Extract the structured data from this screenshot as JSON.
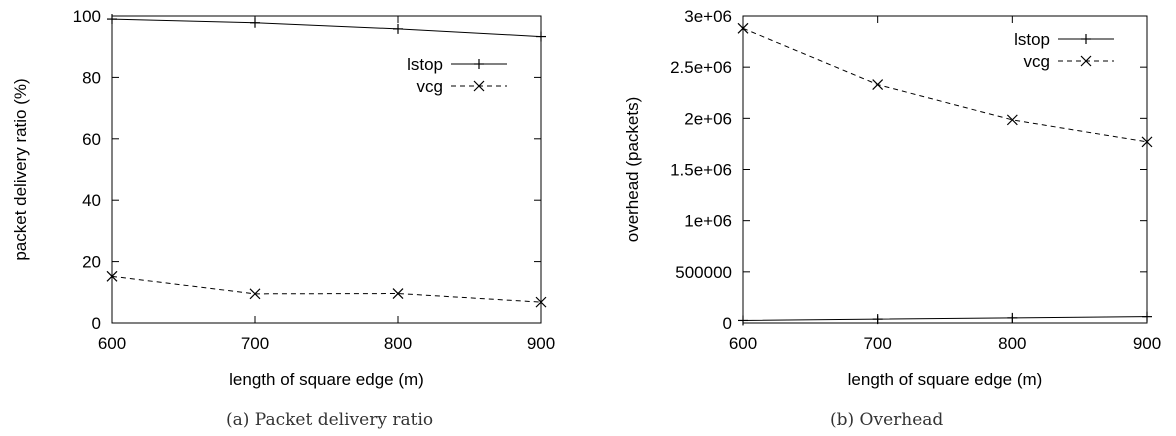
{
  "chart_data": [
    {
      "type": "line",
      "caption": "(a) Packet delivery ratio",
      "xlabel": "length of square edge (m)",
      "ylabel": "packet delivery ratio (%)",
      "x": [
        600,
        700,
        800,
        900
      ],
      "xlim": [
        600,
        900
      ],
      "ylim": [
        0,
        100
      ],
      "xticks": [
        "600",
        "700",
        "800",
        "900"
      ],
      "yticks": [
        "0",
        "20",
        "40",
        "60",
        "80",
        "100"
      ],
      "yticks_values": [
        0,
        20,
        40,
        60,
        80,
        100
      ],
      "legend_position": "top-right",
      "grid": false,
      "series": [
        {
          "name": "lstop",
          "values": [
            99.0,
            97.8,
            95.8,
            93.3
          ],
          "style": "solid",
          "marker": "plus",
          "color": "#000000"
        },
        {
          "name": "vcg",
          "values": [
            15.2,
            9.5,
            9.6,
            6.8
          ],
          "style": "dashed",
          "marker": "x",
          "color": "#000000"
        }
      ]
    },
    {
      "type": "line",
      "caption": "(b) Overhead",
      "xlabel": "length of square edge (m)",
      "ylabel": "overhead (packets)",
      "x": [
        600,
        700,
        800,
        900
      ],
      "xlim": [
        600,
        900
      ],
      "ylim": [
        0,
        3000000
      ],
      "xticks": [
        "600",
        "700",
        "800",
        "900"
      ],
      "yticks": [
        "0",
        "500000",
        "1e+06",
        "1.5e+06",
        "2e+06",
        "2.5e+06",
        "3e+06"
      ],
      "yticks_values": [
        0,
        500000,
        1000000,
        1500000,
        2000000,
        2500000,
        3000000
      ],
      "legend_position": "top-right",
      "grid": false,
      "series": [
        {
          "name": "lstop",
          "values": [
            25000,
            38000,
            50000,
            62000
          ],
          "style": "solid",
          "marker": "plus",
          "color": "#000000"
        },
        {
          "name": "vcg",
          "values": [
            2880000,
            2330000,
            1985000,
            1770000
          ],
          "style": "dashed",
          "marker": "x",
          "color": "#000000"
        }
      ]
    }
  ]
}
